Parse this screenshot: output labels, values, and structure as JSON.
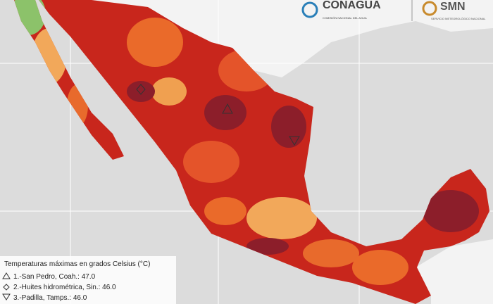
{
  "header": {
    "agency": "CONAGUA",
    "agency_subtitle": "COMISIÓN NACIONAL DEL AGUA",
    "service": "SMN",
    "service_subtitle": "SERVICIO METEOROLÓGICO NACIONAL"
  },
  "legend": {
    "title": "Temperaturas máximas en grados Celsius (°C)",
    "items": [
      "1.-San Pedro, Coah.: 47.0",
      "2.-Huites hidrométrica, Sin.: 46.0",
      "3.-Padilla, Tamps.: 46.0"
    ]
  }
}
